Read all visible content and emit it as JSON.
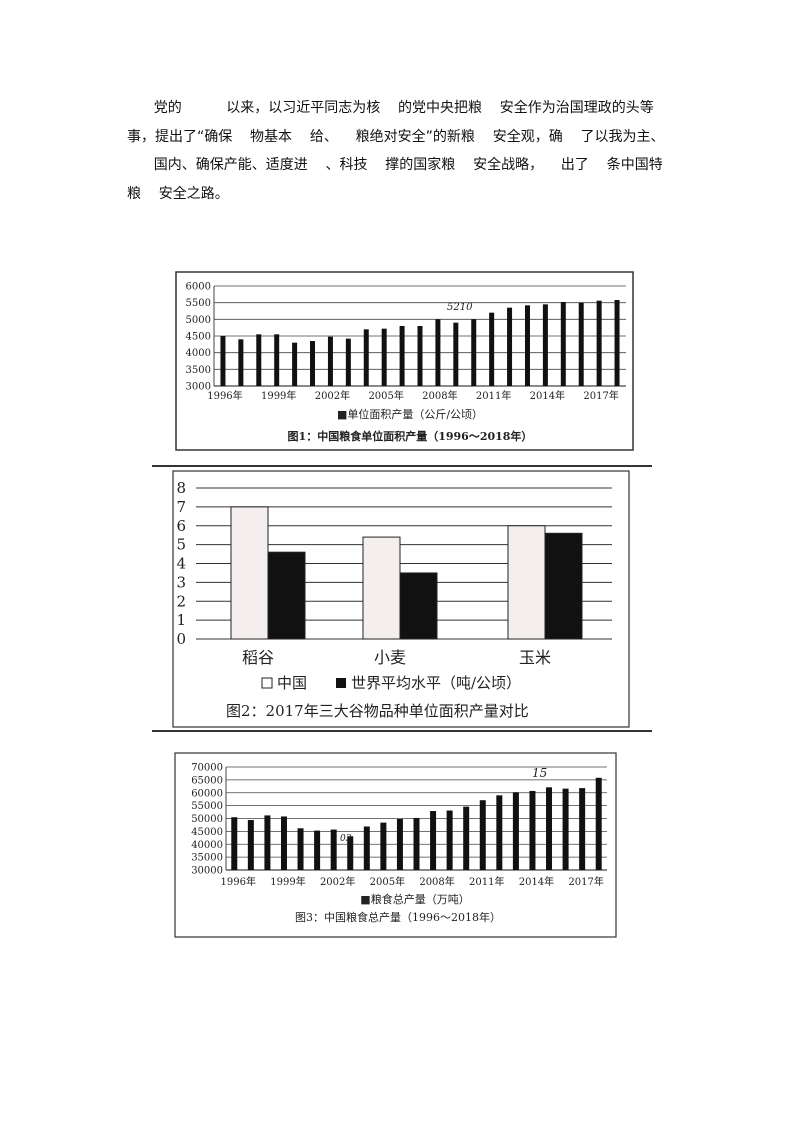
{
  "paragraph": {
    "lines": [
      "      党的          以来，以习近平同志为核    的党中央把粮    安全作为治国理政的头等",
      "事，提出了“确保    物基本    给、    粮绝对安全”的新粮    安全观，确    了以我为主、",
      "      国内、确保产能、适度进    、科技    撑的国家粮    安全战略，    出了    条中国特",
      "粮    安全之路。"
    ]
  },
  "chart_data": [
    {
      "type": "bar",
      "categories": [
        "1996",
        "1997",
        "1998",
        "1999",
        "2000",
        "2001",
        "2002",
        "2003",
        "2004",
        "2005",
        "2006",
        "2007",
        "2008",
        "2009",
        "2010",
        "2011",
        "2012",
        "2013",
        "2014",
        "2015",
        "2016",
        "2017",
        "2018"
      ],
      "values": [
        4500,
        4400,
        4550,
        4550,
        4300,
        4350,
        4480,
        4420,
        4700,
        4720,
        4800,
        4800,
        5000,
        4900,
        5000,
        5200,
        5350,
        5420,
        5450,
        5520,
        5500,
        5560,
        5580
      ],
      "ylim": [
        3000,
        6000
      ],
      "yticks": [
        "3000",
        "3500",
        "4000",
        "4500",
        "5000",
        "5500",
        "6000"
      ],
      "xtick_labels": [
        "1996年",
        "1999年",
        "2002年",
        "2005年",
        "2008年",
        "2011年",
        "2014年",
        "2017年"
      ],
      "legend": "■单位面积产量（公斤/公顷）",
      "title": "图1：中国粮食单位面积产量（1996～2018年）",
      "handwritten_annotation": "5210",
      "grid": true,
      "bar_color": "#111111"
    },
    {
      "type": "bar",
      "categories": [
        "稻谷",
        "小麦",
        "玉米"
      ],
      "series": [
        {
          "name": "中国",
          "values": [
            7.0,
            5.4,
            6.0
          ],
          "color": "#f4eeee"
        },
        {
          "name": "世界平均水平（吨/公顷）",
          "values": [
            4.6,
            3.5,
            5.6
          ],
          "color": "#111111"
        }
      ],
      "ylim": [
        0,
        8
      ],
      "yticks": [
        "0",
        "1",
        "2",
        "3",
        "4",
        "5",
        "6",
        "7",
        "8"
      ],
      "legend_position": "bottom",
      "title": "图2：2017年三大谷物品种单位面积产量对比",
      "grid": true
    },
    {
      "type": "bar",
      "categories": [
        "1996",
        "1997",
        "1998",
        "1999",
        "2000",
        "2001",
        "2002",
        "2003",
        "2004",
        "2005",
        "2006",
        "2007",
        "2008",
        "2009",
        "2010",
        "2011",
        "2012",
        "2013",
        "2014",
        "2015",
        "2016",
        "2017",
        "2018"
      ],
      "values": [
        50500,
        49400,
        51200,
        50800,
        46200,
        45300,
        45700,
        43100,
        46900,
        48400,
        49800,
        50200,
        52900,
        53100,
        54600,
        57100,
        59000,
        60200,
        60700,
        62100,
        61600,
        61800,
        65800
      ],
      "ylim": [
        30000,
        70000
      ],
      "yticks": [
        "30000",
        "35000",
        "40000",
        "45000",
        "50000",
        "55000",
        "60000",
        "65000",
        "70000"
      ],
      "xtick_labels": [
        "1996年",
        "1999年",
        "2002年",
        "2005年",
        "2008年",
        "2011年",
        "2014年",
        "2017年"
      ],
      "legend": "■粮食总产量（万吨）",
      "title": "图3：中国粮食总产量（1996～2018年）",
      "handwritten_annotation": "15",
      "handwritten_annotation_2": "03",
      "grid": true,
      "bar_color": "#111111"
    }
  ]
}
